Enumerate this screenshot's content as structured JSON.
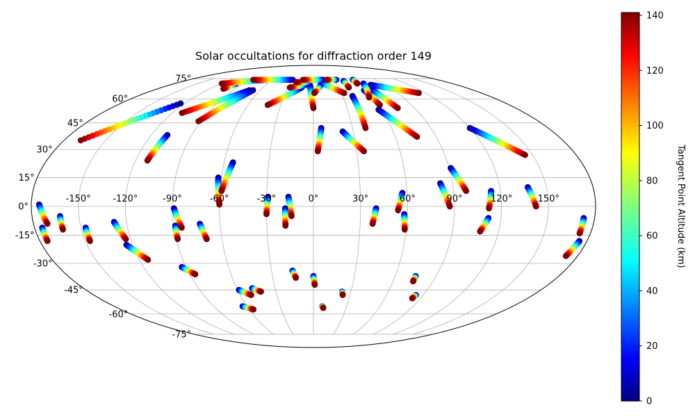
{
  "chart_data": {
    "type": "scatter",
    "projection": "mollweide",
    "title": "Solar occultations for diffraction order 149",
    "grid": true,
    "longitude_ticks": [
      "-150°",
      "-120°",
      "-90°",
      "-60°",
      "-30°",
      "0°",
      "30°",
      "60°",
      "90°",
      "120°",
      "150°"
    ],
    "latitude_ticks": [
      "-75°",
      "-60°",
      "-45°",
      "-30°",
      "-15°",
      "0°",
      "15°",
      "30°",
      "45°",
      "60°",
      "75°"
    ],
    "colorbar": {
      "label": "Tangent Point Altitude (km)",
      "colormap": "jet",
      "range": [
        0,
        141
      ],
      "ticks": [
        "0",
        "20",
        "40",
        "60",
        "80",
        "100",
        "120",
        "140"
      ]
    },
    "altitude_range_km": [
      0,
      141
    ],
    "tracks": [
      {
        "start": [
          -175,
          1
        ],
        "end": [
          -171,
          -9
        ]
      },
      {
        "start": [
          -175,
          -11
        ],
        "end": [
          -175,
          -18
        ]
      },
      {
        "start": [
          -162,
          -5
        ],
        "end": [
          -162,
          -12
        ]
      },
      {
        "start": [
          -147,
          -11
        ],
        "end": [
          -147,
          -18
        ]
      },
      {
        "start": [
          -128,
          -8
        ],
        "end": [
          -123,
          -17
        ]
      },
      {
        "start": [
          -124,
          -20
        ],
        "end": [
          -114,
          -28
        ]
      },
      {
        "start": [
          -108,
          38
        ],
        "end": [
          -112,
          24
        ]
      },
      {
        "start": [
          -124,
          57
        ],
        "end": [
          -168,
          35
        ]
      },
      {
        "start": [
          -72,
          66
        ],
        "end": [
          -112,
          51
        ]
      },
      {
        "start": [
          -100,
          71
        ],
        "end": [
          -104,
          67
        ]
      },
      {
        "start": [
          -68,
          66
        ],
        "end": [
          -92,
          46
        ]
      },
      {
        "start": [
          -68,
          74
        ],
        "end": [
          -119,
          71
        ]
      },
      {
        "start": [
          -30,
          74
        ],
        "end": [
          -87,
          74
        ]
      },
      {
        "start": [
          -89,
          -1
        ],
        "end": [
          -85,
          -11
        ]
      },
      {
        "start": [
          -89,
          -10
        ],
        "end": [
          -89,
          -17
        ]
      },
      {
        "start": [
          -73,
          -9
        ],
        "end": [
          -70,
          -17
        ]
      },
      {
        "start": [
          -62,
          15
        ],
        "end": [
          -60,
          1
        ]
      },
      {
        "start": [
          -54,
          23
        ],
        "end": [
          -59,
          8
        ]
      },
      {
        "start": [
          -29,
          5
        ],
        "end": [
          -30,
          -4
        ]
      },
      {
        "start": [
          -16,
          5
        ],
        "end": [
          -14,
          -5
        ]
      },
      {
        "start": [
          -18,
          -1
        ],
        "end": [
          -18,
          -10
        ]
      },
      {
        "start": [
          -93,
          -32
        ],
        "end": [
          -86,
          -36
        ]
      },
      {
        "start": [
          -59,
          -45
        ],
        "end": [
          -51,
          -48
        ]
      },
      {
        "start": [
          -48,
          -44
        ],
        "end": [
          -42,
          -46
        ]
      },
      {
        "start": [
          -64,
          -55
        ],
        "end": [
          -56,
          -57
        ]
      },
      {
        "start": [
          -15,
          -34
        ],
        "end": [
          -13,
          -38
        ]
      },
      {
        "start": [
          0,
          -37
        ],
        "end": [
          1,
          -42
        ]
      },
      {
        "start": [
          8,
          -55
        ],
        "end": [
          9,
          -56
        ]
      },
      {
        "start": [
          23,
          -46
        ],
        "end": [
          24,
          -48
        ]
      },
      {
        "start": [
          6,
          42
        ],
        "end": [
          3,
          29
        ]
      },
      {
        "start": [
          22,
          40
        ],
        "end": [
          35,
          29
        ]
      },
      {
        "start": [
          -14,
          68
        ],
        "end": [
          -42,
          56
        ]
      },
      {
        "start": [
          -10,
          70
        ],
        "end": [
          -28,
          68
        ]
      },
      {
        "start": [
          -4,
          69
        ],
        "end": [
          0,
          54
        ]
      },
      {
        "start": [
          -5,
          72
        ],
        "end": [
          -23,
          72
        ]
      },
      {
        "start": [
          10,
          72
        ],
        "end": [
          33,
          64
        ]
      },
      {
        "start": [
          14,
          74
        ],
        "end": [
          -15,
          74
        ]
      },
      {
        "start": [
          8,
          69
        ],
        "end": [
          1,
          64
        ]
      },
      {
        "start": [
          33,
          74
        ],
        "end": [
          19,
          74
        ]
      },
      {
        "start": [
          40,
          62
        ],
        "end": [
          40,
          42
        ]
      },
      {
        "start": [
          42,
          73
        ],
        "end": [
          42,
          68
        ]
      },
      {
        "start": [
          57,
          74
        ],
        "end": [
          57,
          71
        ]
      },
      {
        "start": [
          57,
          66
        ],
        "end": [
          61,
          56
        ]
      },
      {
        "start": [
          66,
          67
        ],
        "end": [
          75,
          54
        ]
      },
      {
        "start": [
          72,
          70
        ],
        "end": [
          113,
          64
        ]
      },
      {
        "start": [
          57,
          53
        ],
        "end": [
          76,
          37
        ]
      },
      {
        "start": [
          65,
          71
        ],
        "end": [
          56,
          61
        ]
      },
      {
        "start": [
          120,
          42
        ],
        "end": [
          145,
          27
        ]
      },
      {
        "start": [
          82,
          12
        ],
        "end": [
          87,
          0
        ]
      },
      {
        "start": [
          91,
          20
        ],
        "end": [
          98,
          8
        ]
      },
      {
        "start": [
          114,
          8
        ],
        "end": [
          112,
          -1
        ]
      },
      {
        "start": [
          138,
          10
        ],
        "end": [
          142,
          0
        ]
      },
      {
        "start": [
          40,
          -1
        ],
        "end": [
          38,
          -9
        ]
      },
      {
        "start": [
          57,
          7
        ],
        "end": [
          54,
          -2
        ]
      },
      {
        "start": [
          58,
          -4
        ],
        "end": [
          59,
          -12
        ]
      },
      {
        "start": [
          112,
          -6
        ],
        "end": [
          108,
          -13
        ]
      },
      {
        "start": [
          173,
          -6
        ],
        "end": [
          173,
          -14
        ]
      },
      {
        "start": [
          175,
          -18
        ],
        "end": [
          172,
          -26
        ]
      },
      {
        "start": [
          75,
          -37
        ],
        "end": [
          75,
          -40
        ]
      },
      {
        "start": [
          84,
          -48
        ],
        "end": [
          83,
          -50
        ]
      }
    ]
  }
}
